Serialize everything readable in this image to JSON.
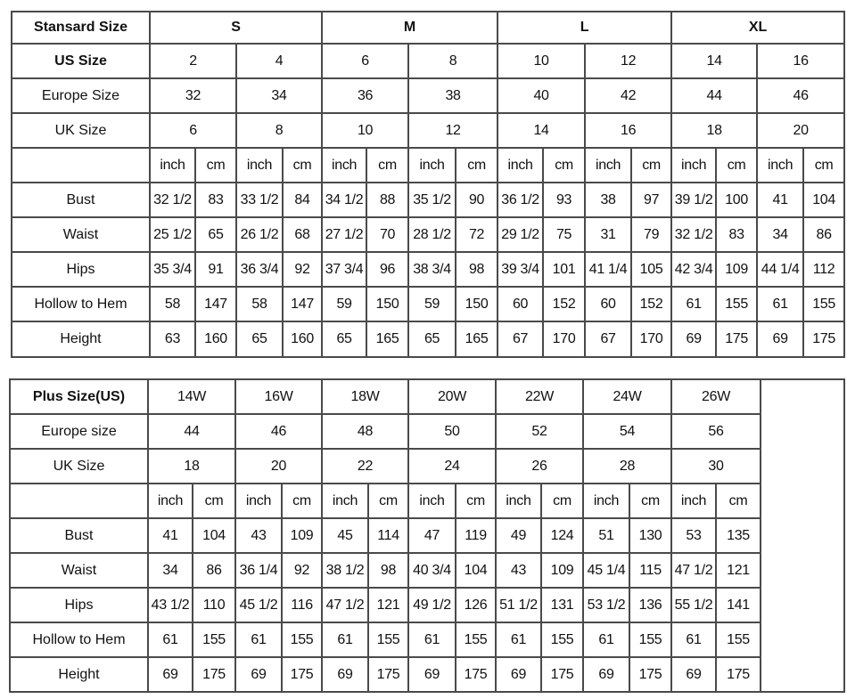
{
  "standard": {
    "header_label": "Stansard Size",
    "us_label": "US Size",
    "eu_label": "Europe Size",
    "uk_label": "UK Size",
    "unit_inch": "inch",
    "unit_cm": "cm",
    "groups": [
      "S",
      "M",
      "L",
      "XL"
    ],
    "us": [
      "2",
      "4",
      "6",
      "8",
      "10",
      "12",
      "14",
      "16"
    ],
    "eu": [
      "32",
      "34",
      "36",
      "38",
      "40",
      "42",
      "44",
      "46"
    ],
    "uk": [
      "6",
      "8",
      "10",
      "12",
      "14",
      "16",
      "18",
      "20"
    ],
    "measurements": [
      {
        "label": "Bust",
        "values": [
          "32 1/2",
          "83",
          "33 1/2",
          "84",
          "34 1/2",
          "88",
          "35 1/2",
          "90",
          "36 1/2",
          "93",
          "38",
          "97",
          "39 1/2",
          "100",
          "41",
          "104"
        ]
      },
      {
        "label": "Waist",
        "values": [
          "25 1/2",
          "65",
          "26 1/2",
          "68",
          "27 1/2",
          "70",
          "28 1/2",
          "72",
          "29 1/2",
          "75",
          "31",
          "79",
          "32 1/2",
          "83",
          "34",
          "86"
        ]
      },
      {
        "label": "Hips",
        "values": [
          "35 3/4",
          "91",
          "36 3/4",
          "92",
          "37 3/4",
          "96",
          "38 3/4",
          "98",
          "39 3/4",
          "101",
          "41 1/4",
          "105",
          "42 3/4",
          "109",
          "44 1/4",
          "112"
        ]
      },
      {
        "label": "Hollow to Hem",
        "values": [
          "58",
          "147",
          "58",
          "147",
          "59",
          "150",
          "59",
          "150",
          "60",
          "152",
          "60",
          "152",
          "61",
          "155",
          "61",
          "155"
        ]
      },
      {
        "label": "Height",
        "values": [
          "63",
          "160",
          "65",
          "160",
          "65",
          "165",
          "65",
          "165",
          "67",
          "170",
          "67",
          "170",
          "69",
          "175",
          "69",
          "175"
        ]
      }
    ]
  },
  "plus": {
    "header_label": "Plus Size(US)",
    "eu_label": "Europe size",
    "uk_label": "UK Size",
    "unit_inch": "inch",
    "unit_cm": "cm",
    "us": [
      "14W",
      "16W",
      "18W",
      "20W",
      "22W",
      "24W",
      "26W"
    ],
    "eu": [
      "44",
      "46",
      "48",
      "50",
      "52",
      "54",
      "56"
    ],
    "uk": [
      "18",
      "20",
      "22",
      "24",
      "26",
      "28",
      "30"
    ],
    "measurements": [
      {
        "label": "Bust",
        "values": [
          "41",
          "104",
          "43",
          "109",
          "45",
          "114",
          "47",
          "119",
          "49",
          "124",
          "51",
          "130",
          "53",
          "135"
        ]
      },
      {
        "label": "Waist",
        "values": [
          "34",
          "86",
          "36 1/4",
          "92",
          "38 1/2",
          "98",
          "40 3/4",
          "104",
          "43",
          "109",
          "45 1/4",
          "115",
          "47 1/2",
          "121"
        ]
      },
      {
        "label": "Hips",
        "values": [
          "43 1/2",
          "110",
          "45 1/2",
          "116",
          "47 1/2",
          "121",
          "49 1/2",
          "126",
          "51 1/2",
          "131",
          "53 1/2",
          "136",
          "55 1/2",
          "141"
        ]
      },
      {
        "label": "Hollow to Hem",
        "values": [
          "61",
          "155",
          "61",
          "155",
          "61",
          "155",
          "61",
          "155",
          "61",
          "155",
          "61",
          "155",
          "61",
          "155"
        ]
      },
      {
        "label": "Height",
        "values": [
          "69",
          "175",
          "69",
          "175",
          "69",
          "175",
          "69",
          "175",
          "69",
          "175",
          "69",
          "175",
          "69",
          "175"
        ]
      }
    ]
  }
}
